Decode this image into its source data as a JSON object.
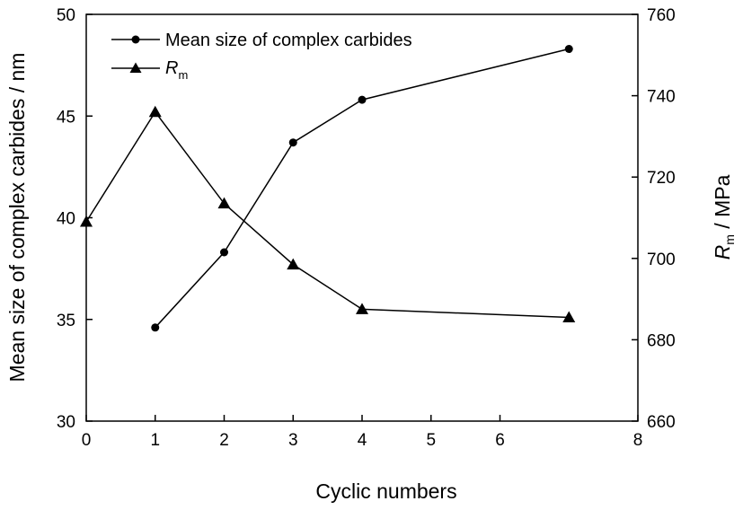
{
  "chart_data": {
    "type": "line",
    "xlabel": "Cyclic numbers",
    "ylabel": "Mean size of complex carbides / nm",
    "y2label_symbol": "R",
    "y2label_subscript": "m",
    "y2label_unit": " / MPa",
    "xlim": [
      0,
      8
    ],
    "ylim": [
      30,
      50
    ],
    "y2lim": [
      660,
      760
    ],
    "xticks": [
      "0",
      "1",
      "2",
      "3",
      "4",
      "5",
      "6",
      "8"
    ],
    "xtick_values": [
      0,
      1,
      2,
      3,
      4,
      5,
      6,
      8
    ],
    "yticks": [
      "30",
      "35",
      "40",
      "45",
      "50"
    ],
    "y2ticks": [
      "660",
      "680",
      "700",
      "720",
      "740",
      "760"
    ],
    "grid": false,
    "legend_position": "top-left",
    "series": [
      {
        "name": "Mean size of complex carbides",
        "axis": "left",
        "marker": "circle",
        "points": [
          {
            "x": 1,
            "y": 34.6
          },
          {
            "x": 2,
            "y": 38.3
          },
          {
            "x": 3,
            "y": 43.7
          },
          {
            "x": 4,
            "y": 45.8
          },
          {
            "x": 7,
            "y": 48.3
          }
        ]
      },
      {
        "legend_symbol": "R",
        "legend_subscript": "m",
        "axis": "right",
        "marker": "triangle",
        "points": [
          {
            "x": 0,
            "y": 709
          },
          {
            "x": 1,
            "y": 736
          },
          {
            "x": 2,
            "y": 713.5
          },
          {
            "x": 3,
            "y": 698.5
          },
          {
            "x": 4,
            "y": 687.5
          },
          {
            "x": 7,
            "y": 685.5
          }
        ]
      }
    ]
  }
}
